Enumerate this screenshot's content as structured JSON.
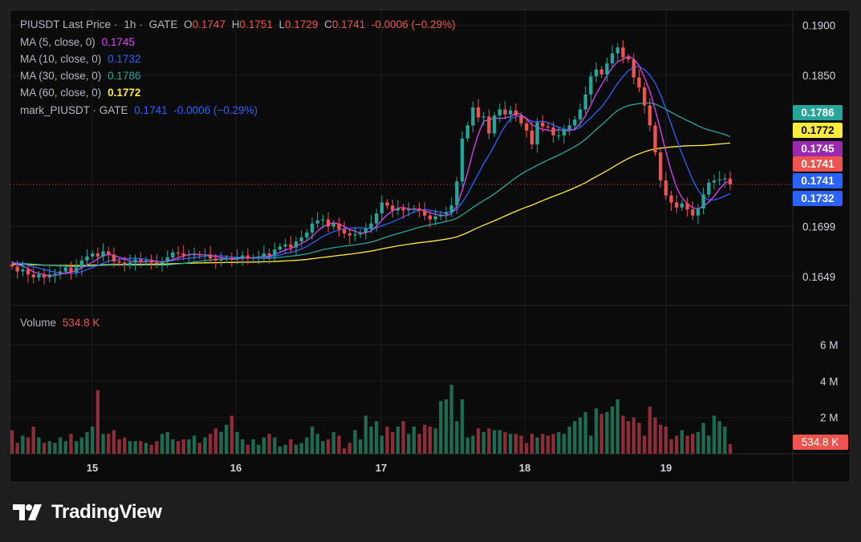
{
  "header": {
    "symbol": "PIUSDT Last Price",
    "interval": "1h",
    "exchange": "GATE",
    "open_label": "O",
    "open": "0.1747",
    "high_label": "H",
    "high": "0.1751",
    "low_label": "L",
    "low": "0.1729",
    "close_label": "C",
    "close": "0.1741",
    "change": "-0.0006 (−0.29%)"
  },
  "legend": {
    "ma5": {
      "label": "MA (5, close, 0)",
      "value": "0.1745"
    },
    "ma10": {
      "label": "MA (10, close, 0)",
      "value": "0.1732"
    },
    "ma30": {
      "label": "MA (30, close, 0)",
      "value": "0.1786"
    },
    "ma60": {
      "label": "MA (60, close, 0)",
      "value": "0.1772"
    },
    "mark": {
      "label": "mark_PIUSDT · GATE",
      "value": "0.1741",
      "change": "-0.0006 (−0.29%)"
    }
  },
  "volume_legend": {
    "label": "Volume",
    "value": "534.8 K"
  },
  "brand": {
    "name": "TradingView"
  },
  "colors": {
    "up": "#26a69a",
    "down": "#ef5350",
    "ma5": "#e040fb",
    "ma10": "#2962ff",
    "ma30": "#26a69a",
    "ma60": "#ffeb3b",
    "mark": "#2962ff",
    "background": "#0b0b0b"
  },
  "chart_data": {
    "type": "candlestick",
    "price_axis_ticks": [
      "0.1900",
      "0.1850",
      "0.1699",
      "0.1649"
    ],
    "volume_axis_ticks": [
      "6 M",
      "4 M",
      "2 M"
    ],
    "time_axis_ticks": [
      "15",
      "16",
      "17",
      "18",
      "19"
    ],
    "price_range": [
      0.162,
      0.1915
    ],
    "volume_range": [
      0,
      7500000
    ],
    "last_price": 0.1741,
    "price_labels": [
      {
        "text": "0.1786",
        "color": "#26a69a",
        "value": 0.1786
      },
      {
        "text": "0.1772",
        "color": "#ffeb3b",
        "value": 0.1772
      },
      {
        "text": "0.1745",
        "color": "#9c27b0",
        "value": 0.1745
      },
      {
        "text": "0.1741",
        "color": "#ef5350",
        "value": 0.1741
      },
      {
        "text": "0.1741",
        "color": "#2962ff",
        "value": 0.1741
      },
      {
        "text": "0.1732",
        "color": "#2962ff",
        "value": 0.1732
      }
    ],
    "volume_label": {
      "text": "534.8 K",
      "value": 534800
    },
    "closes": [
      0.1659,
      0.1654,
      0.1656,
      0.1651,
      0.1648,
      0.1651,
      0.1648,
      0.1651,
      0.1652,
      0.1654,
      0.1658,
      0.1653,
      0.1658,
      0.1665,
      0.1669,
      0.1672,
      0.1669,
      0.1674,
      0.1671,
      0.1664,
      0.1663,
      0.1661,
      0.1663,
      0.1666,
      0.1664,
      0.1665,
      0.1663,
      0.1662,
      0.1664,
      0.1668,
      0.1673,
      0.1672,
      0.167,
      0.1671,
      0.1671,
      0.167,
      0.1671,
      0.1667,
      0.1665,
      0.1666,
      0.1667,
      0.1666,
      0.1668,
      0.167,
      0.1667,
      0.1668,
      0.1669,
      0.1672,
      0.167,
      0.1676,
      0.1679,
      0.1681,
      0.1678,
      0.1684,
      0.1688,
      0.1693,
      0.1702,
      0.1705,
      0.1706,
      0.1699,
      0.1702,
      0.1696,
      0.1692,
      0.169,
      0.1691,
      0.1693,
      0.1697,
      0.1702,
      0.1712,
      0.1723,
      0.172,
      0.1715,
      0.1717,
      0.1715,
      0.1716,
      0.1717,
      0.1715,
      0.171,
      0.1706,
      0.1709,
      0.1711,
      0.1713,
      0.172,
      0.1744,
      0.1787,
      0.18,
      0.1818,
      0.1808,
      0.1809,
      0.1792,
      0.181,
      0.1816,
      0.1811,
      0.1815,
      0.181,
      0.1802,
      0.1795,
      0.1781,
      0.1803,
      0.1799,
      0.1798,
      0.179,
      0.179,
      0.1796,
      0.18,
      0.1806,
      0.1816,
      0.1831,
      0.1849,
      0.1856,
      0.1851,
      0.1862,
      0.1872,
      0.1878,
      0.1868,
      0.1866,
      0.1848,
      0.1838,
      0.182,
      0.18,
      0.1773,
      0.1745,
      0.173,
      0.1723,
      0.1718,
      0.1722,
      0.1716,
      0.171,
      0.1717,
      0.1731,
      0.1743,
      0.1745,
      0.1746,
      0.1747,
      0.1741
    ],
    "volumes": [
      1.3,
      0.6,
      1.0,
      0.9,
      1.5,
      0.9,
      0.6,
      0.7,
      0.6,
      0.9,
      0.7,
      1.1,
      0.7,
      0.9,
      1.2,
      1.5,
      3.5,
      1.1,
      1.1,
      1.3,
      0.8,
      0.9,
      0.7,
      0.7,
      0.7,
      0.6,
      0.5,
      0.7,
      1.1,
      1.2,
      0.8,
      0.7,
      0.8,
      0.8,
      1.0,
      0.6,
      0.9,
      1.1,
      1.4,
      1.2,
      1.6,
      2.1,
      1.2,
      0.8,
      0.5,
      0.8,
      0.5,
      0.9,
      1.1,
      0.9,
      0.4,
      0.5,
      0.8,
      0.5,
      0.6,
      0.9,
      1.5,
      1.1,
      0.7,
      0.8,
      1.2,
      1.0,
      0.3,
      0.6,
      1.3,
      0.8,
      2.1,
      1.5,
      1.8,
      1.0,
      1.5,
      1.2,
      1.5,
      1.8,
      1.1,
      1.5,
      1.1,
      1.6,
      1.5,
      1.4,
      2.9,
      3.0,
      3.8,
      1.8,
      3.0,
      0.9,
      1.0,
      1.4,
      1.2,
      1.4,
      1.3,
      1.3,
      1.2,
      1.1,
      1.1,
      1.0,
      0.6,
      1.1,
      0.9,
      1.1,
      1.0,
      1.1,
      1.2,
      1.1,
      1.5,
      1.8,
      2.0,
      2.3,
      1.0,
      2.5,
      2.2,
      2.3,
      2.6,
      3.0,
      2.1,
      1.8,
      2.0,
      1.7,
      1.0,
      2.6,
      2.0,
      1.6,
      1.5,
      0.8,
      1.0,
      1.3,
      1.0,
      1.1,
      1.2,
      1.7,
      1.0,
      2.1,
      1.8,
      1.5,
      0.53
    ],
    "volume_unit": "M"
  }
}
